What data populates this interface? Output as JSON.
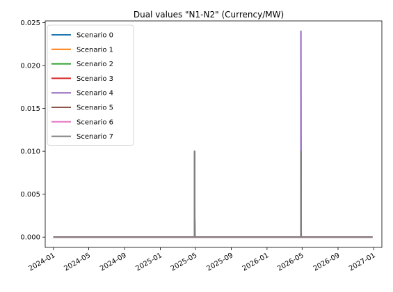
{
  "chart_data": {
    "type": "line",
    "title": "Dual values \"N1-N2\" (Currency/MW)",
    "xlabel": "",
    "ylabel": "",
    "x_axis_type": "date",
    "xlim": [
      "2023-12-04",
      "2027-01-29"
    ],
    "ylim": [
      -0.0012,
      0.0252
    ],
    "x_ticks": [
      "2024-01",
      "2024-05",
      "2024-09",
      "2025-01",
      "2025-05",
      "2025-09",
      "2026-01",
      "2026-05",
      "2026-09",
      "2027-01"
    ],
    "y_ticks": [
      0.0,
      0.005,
      0.01,
      0.015,
      0.02,
      0.025
    ],
    "y_tick_labels": [
      "0.000",
      "0.005",
      "0.010",
      "0.015",
      "0.020",
      "0.025"
    ],
    "grid": false,
    "legend_position": "top-left",
    "series": [
      {
        "name": "Scenario 0",
        "color": "#1f77b4",
        "x": [
          "2024-01-01",
          "2025-04-28",
          "2025-04-28",
          "2025-04-29",
          "2026-04-27",
          "2026-04-27",
          "2026-04-28",
          "2026-12-28"
        ],
        "y": [
          0,
          0,
          0.01,
          0,
          0,
          0.01,
          0,
          0
        ]
      },
      {
        "name": "Scenario 1",
        "color": "#ff7f0e",
        "x": [
          "2024-01-01",
          "2025-04-28",
          "2025-04-28",
          "2025-04-29",
          "2026-04-27",
          "2026-04-27",
          "2026-04-28",
          "2026-12-28"
        ],
        "y": [
          0,
          0,
          0.01,
          0,
          0,
          0.01,
          0,
          0
        ]
      },
      {
        "name": "Scenario 2",
        "color": "#2ca02c",
        "x": [
          "2024-01-01",
          "2025-04-28",
          "2025-04-28",
          "2025-04-29",
          "2026-04-27",
          "2026-04-27",
          "2026-04-28",
          "2026-12-28"
        ],
        "y": [
          0,
          0,
          0.01,
          0,
          0,
          0.01,
          0,
          0
        ]
      },
      {
        "name": "Scenario 3",
        "color": "#d62728",
        "x": [
          "2024-01-01",
          "2025-04-28",
          "2025-04-28",
          "2025-04-29",
          "2026-04-27",
          "2026-04-27",
          "2026-04-28",
          "2026-12-28"
        ],
        "y": [
          0,
          0,
          0.01,
          0,
          0,
          0.01,
          0,
          0
        ]
      },
      {
        "name": "Scenario 4",
        "color": "#9467bd",
        "x": [
          "2024-01-01",
          "2025-04-28",
          "2025-04-28",
          "2025-04-29",
          "2026-04-27",
          "2026-04-27",
          "2026-04-28",
          "2026-12-28"
        ],
        "y": [
          0,
          0,
          0.01,
          0,
          0,
          0.024,
          0,
          0
        ]
      },
      {
        "name": "Scenario 5",
        "color": "#8c564b",
        "x": [
          "2024-01-01",
          "2025-04-28",
          "2025-04-28",
          "2025-04-29",
          "2026-04-27",
          "2026-04-27",
          "2026-04-28",
          "2026-12-28"
        ],
        "y": [
          0,
          0,
          0.01,
          0,
          0,
          0.01,
          0,
          0
        ]
      },
      {
        "name": "Scenario 6",
        "color": "#e377c2",
        "x": [
          "2024-01-01",
          "2025-04-28",
          "2025-04-28",
          "2025-04-29",
          "2026-04-27",
          "2026-04-27",
          "2026-04-28",
          "2026-12-28"
        ],
        "y": [
          0,
          0,
          0.01,
          0,
          0,
          0.01,
          0,
          0
        ]
      },
      {
        "name": "Scenario 7",
        "color": "#7f7f7f",
        "x": [
          "2024-01-01",
          "2025-04-28",
          "2025-04-28",
          "2025-04-29",
          "2026-04-27",
          "2026-04-27",
          "2026-04-28",
          "2026-12-28"
        ],
        "y": [
          0,
          0,
          0.01,
          0,
          0,
          0.01,
          0,
          0
        ]
      }
    ]
  }
}
